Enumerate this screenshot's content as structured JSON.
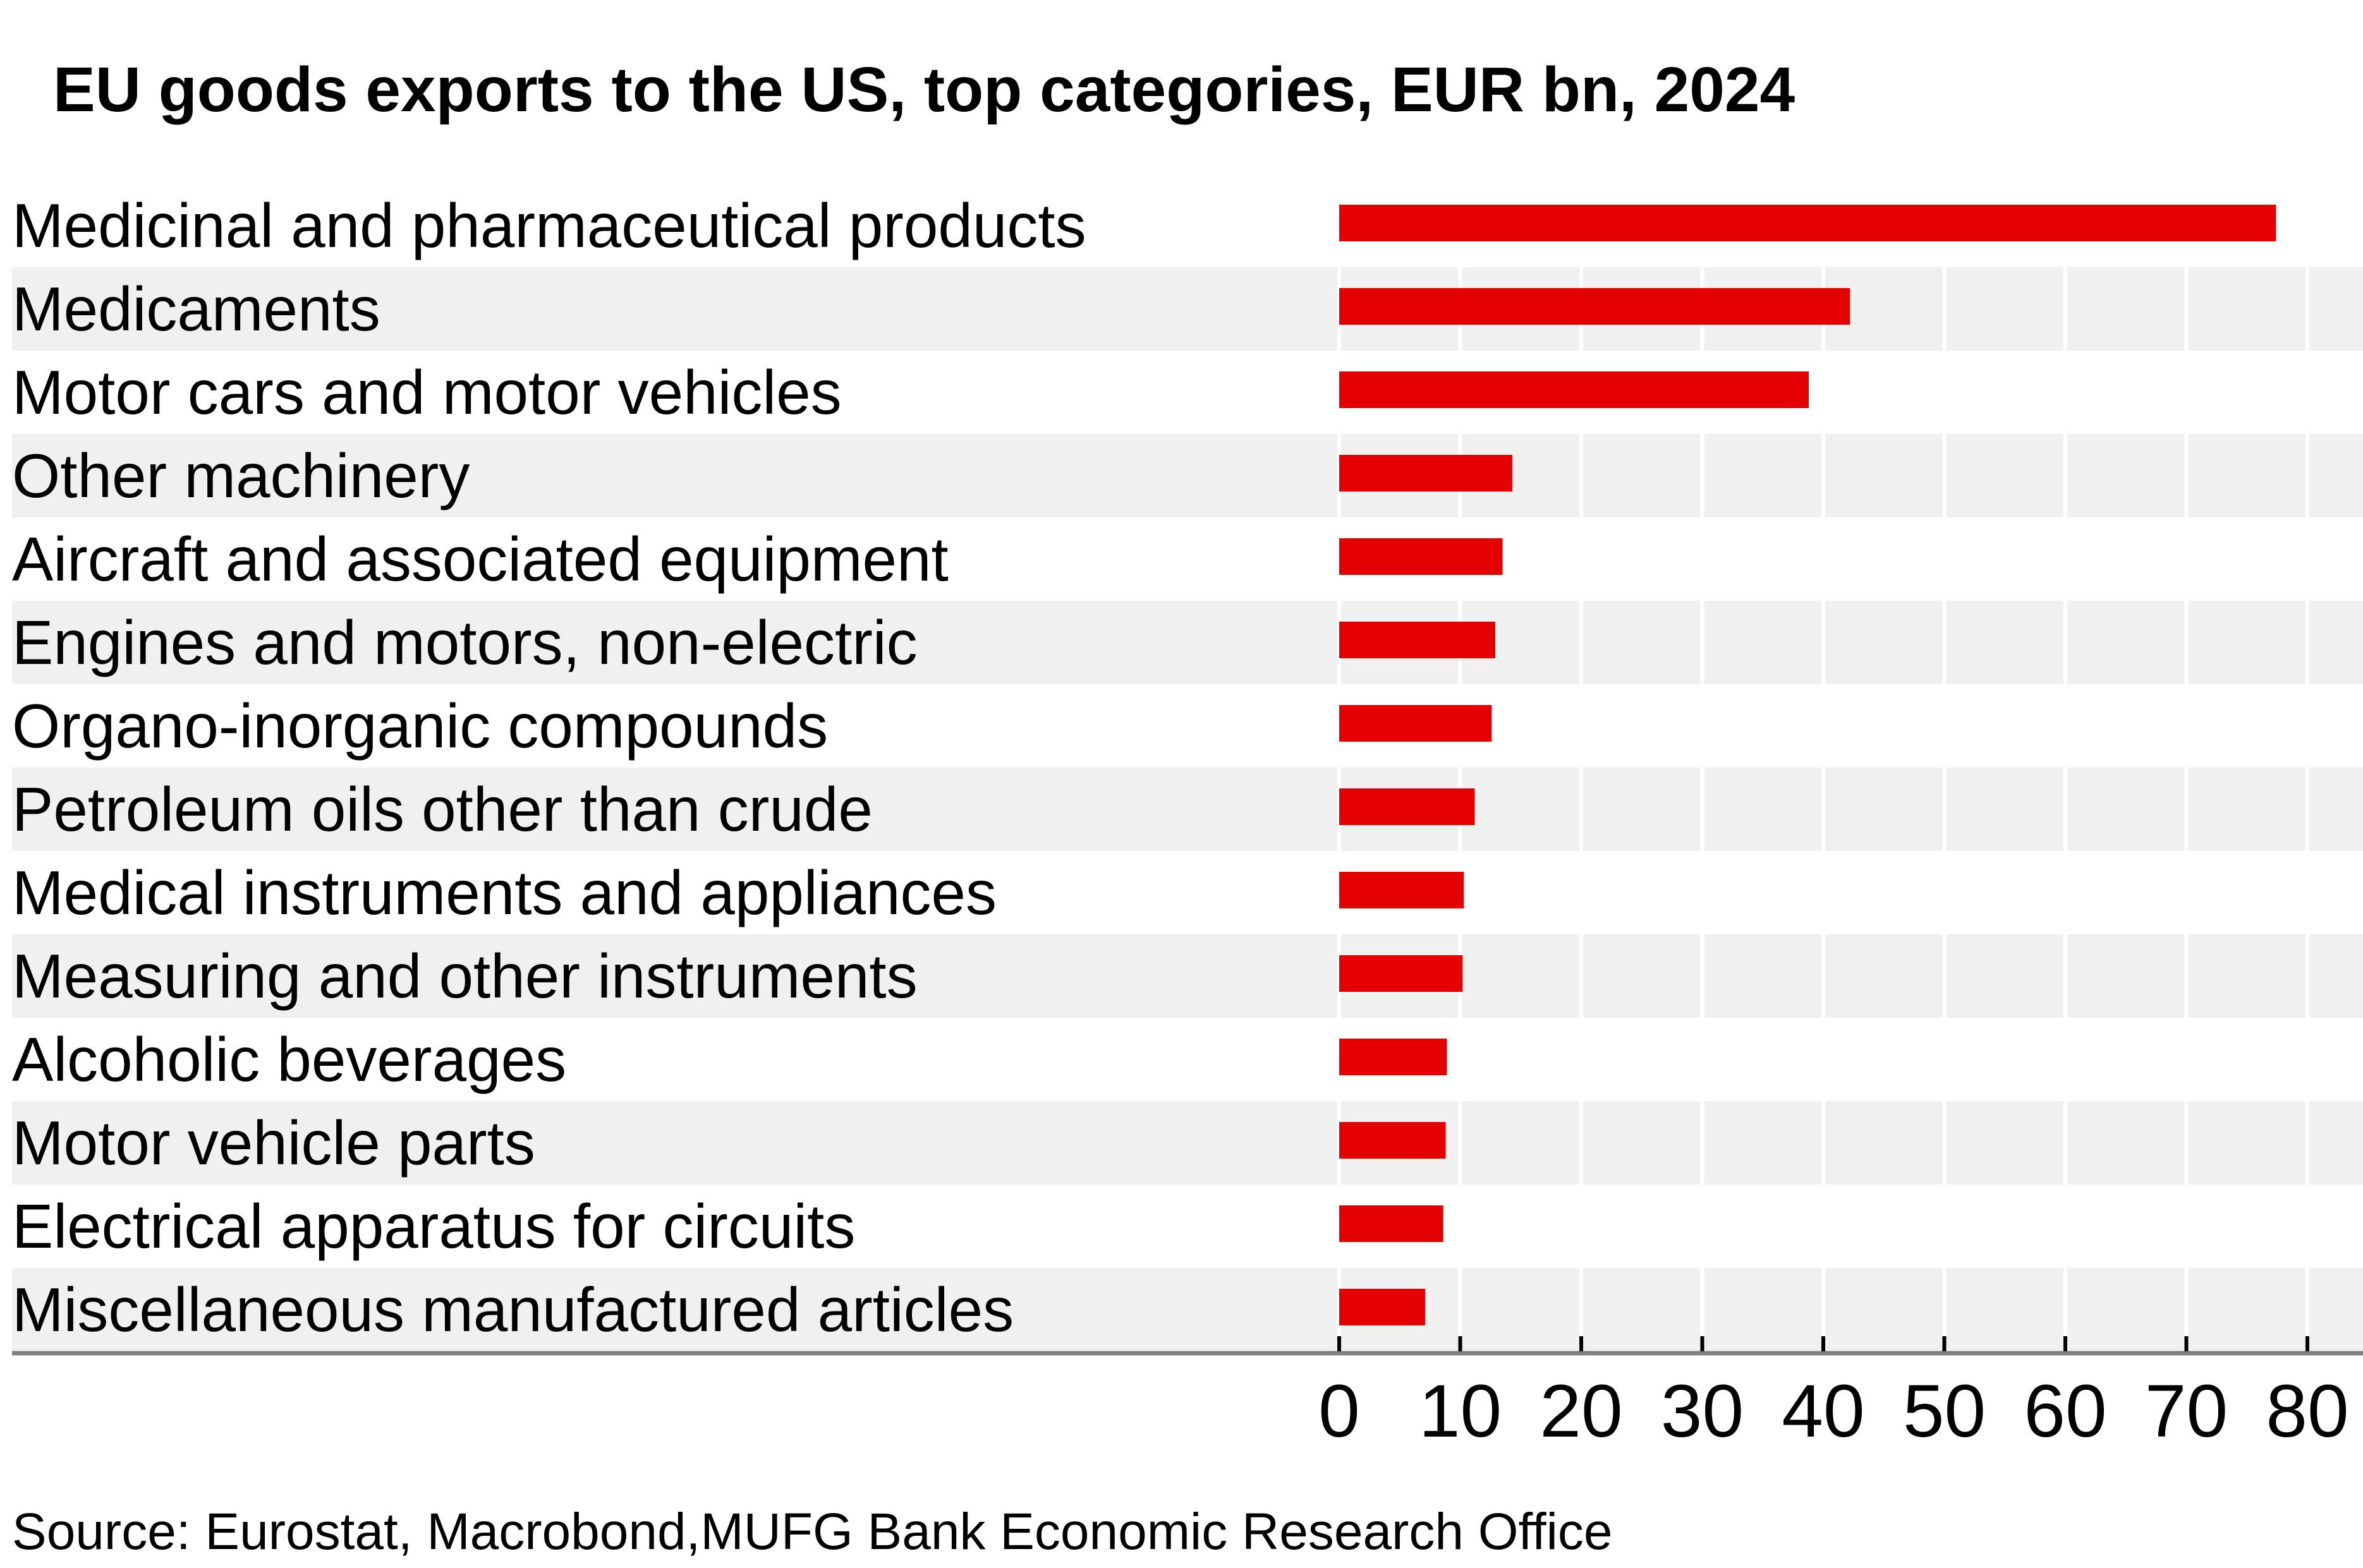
{
  "chart_data": {
    "type": "bar",
    "orientation": "horizontal",
    "title": "EU goods exports to the US, top categories, EUR bn, 2024",
    "xlabel": "",
    "ylabel": "",
    "xlim": [
      0,
      80
    ],
    "xticks": [
      0,
      10,
      20,
      30,
      40,
      50,
      60,
      70,
      80
    ],
    "xtick_labels": [
      "0",
      "10",
      "20",
      "30",
      "40",
      "50",
      "60",
      "70",
      "80"
    ],
    "grid": "vertical gridlines on alternating shaded row bands",
    "legend": "none",
    "categories": [
      "Medicinal and pharmaceutical products",
      "Medicaments",
      "Motor cars and motor vehicles",
      "Other machinery",
      "Aircraft and associated equipment",
      "Engines and motors, non-electric",
      "Organo-inorganic compounds",
      "Petroleum oils other than crude",
      "Medical instruments and appliances",
      "Measuring and other instruments",
      "Alcoholic beverages",
      "Motor vehicle parts",
      "Electrical apparatus for circuits",
      "Miscellaneous manufactured articles"
    ],
    "values": [
      77.4,
      42.2,
      38.8,
      14.3,
      13.5,
      12.9,
      12.6,
      11.2,
      10.3,
      10.2,
      8.9,
      8.8,
      8.6,
      7.1
    ],
    "colors": {
      "bar": "#e50000",
      "band": "#f0f0f0",
      "gridline": "#ffffff",
      "axis": "#808080",
      "tick": "#000000"
    }
  },
  "footer": {
    "source": "Source: Eurostat, Macrobond,MUFG Bank Economic Research Office"
  }
}
